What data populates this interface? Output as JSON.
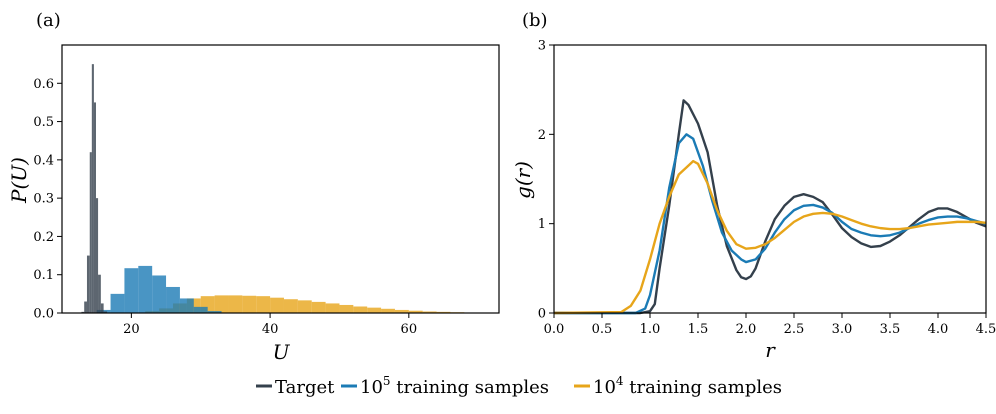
{
  "legend": [
    {
      "label": "Target",
      "color": "#34404c"
    },
    {
      "label": "10",
      "sup": "5",
      "rest": " training samples",
      "color": "#1b7bb5"
    },
    {
      "label": "10",
      "sup": "4",
      "rest": " training samples",
      "color": "#e7a51a"
    }
  ],
  "chart_data": [
    {
      "type": "histogram",
      "panel_label": "(a)",
      "xlabel": "U",
      "ylabel": "P(U)",
      "xlim": [
        10,
        73
      ],
      "ylim": [
        0,
        0.7
      ],
      "xticks": [
        "20",
        "40",
        "60"
      ],
      "xtick_values": [
        20,
        40,
        60
      ],
      "yticks": [
        "0.0",
        "0.1",
        "0.2",
        "0.3",
        "0.4",
        "0.5",
        "0.6"
      ],
      "ytick_values": [
        0.0,
        0.1,
        0.2,
        0.3,
        0.4,
        0.5,
        0.6
      ],
      "series": [
        {
          "name": "10^4 training samples",
          "color": "#e7a51a",
          "bins": [
            [
              22,
              24,
              0.005
            ],
            [
              24,
              26,
              0.012
            ],
            [
              26,
              28,
              0.025
            ],
            [
              28,
              30,
              0.038
            ],
            [
              30,
              32,
              0.044
            ],
            [
              32,
              34,
              0.046
            ],
            [
              34,
              36,
              0.046
            ],
            [
              36,
              38,
              0.045
            ],
            [
              38,
              40,
              0.044
            ],
            [
              40,
              42,
              0.04
            ],
            [
              42,
              44,
              0.036
            ],
            [
              44,
              46,
              0.033
            ],
            [
              46,
              48,
              0.029
            ],
            [
              48,
              50,
              0.025
            ],
            [
              50,
              52,
              0.021
            ],
            [
              52,
              54,
              0.017
            ],
            [
              54,
              56,
              0.014
            ],
            [
              56,
              58,
              0.011
            ],
            [
              58,
              60,
              0.008
            ],
            [
              60,
              62,
              0.006
            ],
            [
              62,
              64,
              0.004
            ],
            [
              64,
              66,
              0.003
            ],
            [
              66,
              68,
              0.002
            ],
            [
              68,
              70,
              0.001
            ]
          ]
        },
        {
          "name": "10^5 training samples",
          "color": "#1b7bb5",
          "bins": [
            [
              15,
              17,
              0.008
            ],
            [
              17,
              19,
              0.05
            ],
            [
              19,
              21,
              0.117
            ],
            [
              21,
              23,
              0.123
            ],
            [
              23,
              25,
              0.098
            ],
            [
              25,
              27,
              0.068
            ],
            [
              27,
              29,
              0.038
            ],
            [
              29,
              31,
              0.016
            ],
            [
              31,
              33,
              0.005
            ]
          ]
        },
        {
          "name": "Target",
          "color": "#34404c",
          "bins": [
            [
              12.8,
              13.2,
              0.003
            ],
            [
              13.2,
              13.6,
              0.03
            ],
            [
              13.6,
              14.0,
              0.15
            ],
            [
              14.0,
              14.3,
              0.42
            ],
            [
              14.3,
              14.6,
              0.65
            ],
            [
              14.6,
              14.9,
              0.55
            ],
            [
              14.9,
              15.2,
              0.3
            ],
            [
              15.2,
              15.6,
              0.1
            ],
            [
              15.6,
              16.0,
              0.025
            ],
            [
              16.0,
              16.5,
              0.004
            ]
          ]
        }
      ]
    },
    {
      "type": "line",
      "panel_label": "(b)",
      "xlabel": "r",
      "ylabel": "g(r)",
      "xlim": [
        0,
        4.5
      ],
      "ylim": [
        0,
        3
      ],
      "xticks": [
        "0.0",
        "0.5",
        "1.0",
        "1.5",
        "2.0",
        "2.5",
        "3.0",
        "3.5",
        "4.0",
        "4.5"
      ],
      "xtick_values": [
        0,
        0.5,
        1.0,
        1.5,
        2.0,
        2.5,
        3.0,
        3.5,
        4.0,
        4.5
      ],
      "yticks": [
        "0",
        "1",
        "2",
        "3"
      ],
      "ytick_values": [
        0,
        1,
        2,
        3
      ],
      "series": [
        {
          "name": "Target",
          "color": "#34404c",
          "x": [
            0,
            0.9,
            1.0,
            1.05,
            1.1,
            1.2,
            1.3,
            1.35,
            1.4,
            1.5,
            1.6,
            1.7,
            1.8,
            1.9,
            1.95,
            2.0,
            2.05,
            2.1,
            2.2,
            2.3,
            2.4,
            2.5,
            2.6,
            2.7,
            2.8,
            2.9,
            3.0,
            3.1,
            3.2,
            3.3,
            3.4,
            3.5,
            3.6,
            3.7,
            3.8,
            3.9,
            4.0,
            4.1,
            4.2,
            4.3,
            4.4,
            4.5
          ],
          "y": [
            0,
            0,
            0.02,
            0.1,
            0.5,
            1.2,
            2.0,
            2.38,
            2.33,
            2.12,
            1.8,
            1.2,
            0.75,
            0.48,
            0.4,
            0.38,
            0.41,
            0.5,
            0.8,
            1.05,
            1.2,
            1.3,
            1.33,
            1.3,
            1.24,
            1.1,
            0.95,
            0.85,
            0.78,
            0.74,
            0.75,
            0.8,
            0.87,
            0.96,
            1.05,
            1.13,
            1.17,
            1.17,
            1.13,
            1.07,
            1.01,
            0.97
          ]
        },
        {
          "name": "10^5 training samples",
          "color": "#1b7bb5",
          "x": [
            0,
            0.85,
            0.95,
            1.0,
            1.1,
            1.2,
            1.3,
            1.38,
            1.45,
            1.55,
            1.65,
            1.75,
            1.85,
            1.95,
            2.0,
            2.1,
            2.2,
            2.3,
            2.4,
            2.5,
            2.6,
            2.7,
            2.8,
            2.9,
            3.0,
            3.1,
            3.2,
            3.3,
            3.4,
            3.5,
            3.6,
            3.7,
            3.8,
            3.9,
            4.0,
            4.1,
            4.2,
            4.3,
            4.4,
            4.5
          ],
          "y": [
            0,
            0,
            0.05,
            0.2,
            0.7,
            1.4,
            1.9,
            2.0,
            1.95,
            1.65,
            1.25,
            0.9,
            0.7,
            0.6,
            0.57,
            0.6,
            0.72,
            0.9,
            1.05,
            1.15,
            1.2,
            1.21,
            1.18,
            1.12,
            1.02,
            0.94,
            0.9,
            0.87,
            0.86,
            0.87,
            0.9,
            0.95,
            1.0,
            1.04,
            1.07,
            1.08,
            1.08,
            1.06,
            1.03,
            1.0
          ]
        },
        {
          "name": "10^4 training samples",
          "color": "#e7a51a",
          "x": [
            0,
            0.7,
            0.8,
            0.9,
            1.0,
            1.1,
            1.2,
            1.3,
            1.4,
            1.45,
            1.5,
            1.6,
            1.7,
            1.8,
            1.9,
            2.0,
            2.1,
            2.2,
            2.3,
            2.4,
            2.5,
            2.6,
            2.7,
            2.8,
            2.9,
            3.0,
            3.1,
            3.2,
            3.3,
            3.4,
            3.5,
            3.6,
            3.7,
            3.8,
            3.9,
            4.0,
            4.1,
            4.2,
            4.3,
            4.4,
            4.5
          ],
          "y": [
            0,
            0.01,
            0.08,
            0.25,
            0.6,
            1.0,
            1.3,
            1.55,
            1.65,
            1.7,
            1.67,
            1.45,
            1.15,
            0.92,
            0.77,
            0.72,
            0.73,
            0.77,
            0.84,
            0.93,
            1.02,
            1.08,
            1.11,
            1.12,
            1.11,
            1.08,
            1.04,
            1.0,
            0.97,
            0.95,
            0.94,
            0.94,
            0.95,
            0.97,
            0.99,
            1.0,
            1.01,
            1.02,
            1.02,
            1.02,
            1.01
          ]
        }
      ]
    }
  ]
}
